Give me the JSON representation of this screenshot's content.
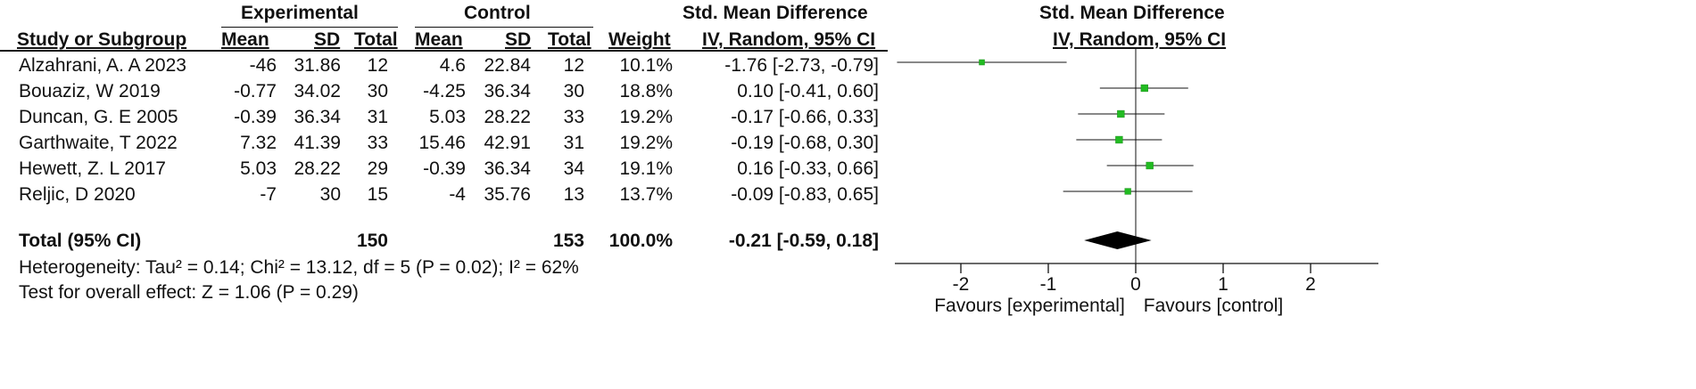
{
  "header": {
    "group_experimental": "Experimental",
    "group_control": "Control",
    "smd_title": "Std. Mean Difference",
    "smd_method": "IV, Random, 95% CI",
    "plot_title": "Std. Mean Difference",
    "plot_method": "IV, Random, 95% CI",
    "col_study": "Study or Subgroup",
    "col_mean": "Mean",
    "col_sd": "SD",
    "col_total": "Total",
    "col_weight": "Weight"
  },
  "studies": [
    {
      "name": "Alzahrani, A. A 2023",
      "e_mean": "-46",
      "e_sd": "31.86",
      "e_total": "12",
      "c_mean": "4.6",
      "c_sd": "22.84",
      "c_total": "12",
      "weight": "10.1%",
      "ci_text": "-1.76 [-2.73, -0.79]"
    },
    {
      "name": "Bouaziz, W 2019",
      "e_mean": "-0.77",
      "e_sd": "34.02",
      "e_total": "30",
      "c_mean": "-4.25",
      "c_sd": "36.34",
      "c_total": "30",
      "weight": "18.8%",
      "ci_text": "0.10 [-0.41, 0.60]"
    },
    {
      "name": "Duncan, G. E 2005",
      "e_mean": "-0.39",
      "e_sd": "36.34",
      "e_total": "31",
      "c_mean": "5.03",
      "c_sd": "28.22",
      "c_total": "33",
      "weight": "19.2%",
      "ci_text": "-0.17 [-0.66, 0.33]"
    },
    {
      "name": "Garthwaite, T 2022",
      "e_mean": "7.32",
      "e_sd": "41.39",
      "e_total": "33",
      "c_mean": "15.46",
      "c_sd": "42.91",
      "c_total": "31",
      "weight": "19.2%",
      "ci_text": "-0.19 [-0.68, 0.30]"
    },
    {
      "name": "Hewett, Z. L 2017",
      "e_mean": "5.03",
      "e_sd": "28.22",
      "e_total": "29",
      "c_mean": "-0.39",
      "c_sd": "36.34",
      "c_total": "34",
      "weight": "19.1%",
      "ci_text": "0.16 [-0.33, 0.66]"
    },
    {
      "name": "Reljic, D 2020",
      "e_mean": "-7",
      "e_sd": "30",
      "e_total": "15",
      "c_mean": "-4",
      "c_sd": "35.76",
      "c_total": "13",
      "weight": "13.7%",
      "ci_text": "-0.09 [-0.83, 0.65]"
    }
  ],
  "total": {
    "label": "Total (95% CI)",
    "e_total": "150",
    "c_total": "153",
    "weight": "100.0%",
    "ci_text": "-0.21 [-0.59, 0.18]"
  },
  "heterogeneity": "Heterogeneity: Tau² = 0.14; Chi² = 13.12, df = 5 (P = 0.02); I² = 62%",
  "overall_effect": "Test for overall effect: Z = 1.06 (P = 0.29)",
  "favours_left": "Favours [experimental]",
  "favours_right": "Favours [control]",
  "colors": {
    "study_marker": "#22bb22",
    "line": "#111111",
    "summary": "#000000"
  },
  "chart_data": {
    "type": "forest",
    "x_range": [
      -2.8,
      2.8
    ],
    "ticks": [
      -2,
      -1,
      0,
      1,
      2
    ],
    "reference_line": 0,
    "studies": [
      {
        "label": "Alzahrani, A. A 2023",
        "est": -1.76,
        "lo": -2.73,
        "hi": -0.79,
        "weight": 10.1
      },
      {
        "label": "Bouaziz, W 2019",
        "est": 0.1,
        "lo": -0.41,
        "hi": 0.6,
        "weight": 18.8
      },
      {
        "label": "Duncan, G. E 2005",
        "est": -0.17,
        "lo": -0.66,
        "hi": 0.33,
        "weight": 19.2
      },
      {
        "label": "Garthwaite, T 2022",
        "est": -0.19,
        "lo": -0.68,
        "hi": 0.3,
        "weight": 19.2
      },
      {
        "label": "Hewett, Z. L 2017",
        "est": 0.16,
        "lo": -0.33,
        "hi": 0.66,
        "weight": 19.1
      },
      {
        "label": "Reljic, D 2020",
        "est": -0.09,
        "lo": -0.83,
        "hi": 0.65,
        "weight": 13.7
      }
    ],
    "summary": {
      "label": "Total (95% CI)",
      "est": -0.21,
      "lo": -0.59,
      "hi": 0.18
    }
  }
}
